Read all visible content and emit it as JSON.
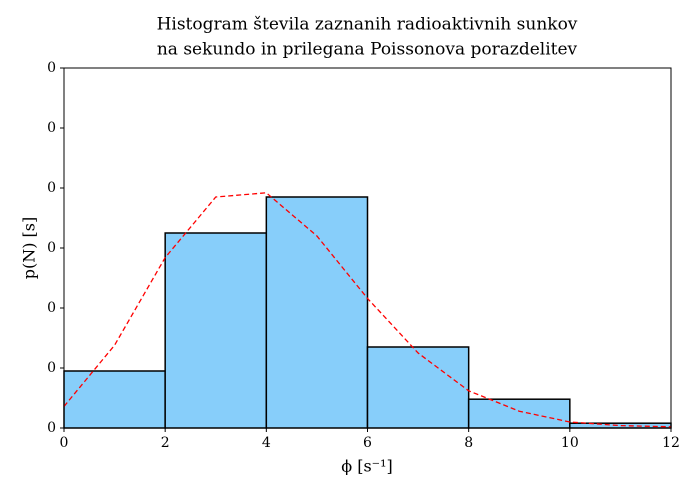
{
  "chart_data": {
    "type": "histogram",
    "title": [
      "Histogram števila zaznanih radioaktivnih sunkov",
      "na sekundo in prilegana Poissonova porazdelitev"
    ],
    "xlabel": "ϕ [s⁻¹]",
    "ylabel": "p(N) [s]",
    "bins": [
      0,
      2,
      4,
      6,
      8,
      10,
      12
    ],
    "values": [
      0.0475,
      0.1625,
      0.1925,
      0.0675,
      0.024,
      0.004
    ],
    "color": "#87cefa",
    "edgecolor": "#000000",
    "fit": {
      "x": [
        0,
        1,
        2,
        3,
        4,
        5,
        6,
        7,
        8,
        9,
        10,
        11,
        12
      ],
      "values": [
        0.018,
        0.069,
        0.142,
        0.1925,
        0.196,
        0.16,
        0.108,
        0.0625,
        0.031,
        0.014,
        0.005,
        0.002,
        0.001
      ],
      "color": "#ff0000",
      "dashed": true
    },
    "xlim": [
      0,
      12
    ],
    "xticks": [
      0,
      2,
      4,
      6,
      8,
      10,
      12
    ],
    "ylim": [
      0,
      0.3
    ],
    "yticks": [
      0,
      {
        "value": 0.05,
        "label": "0"
      },
      {
        "value": 0.1,
        "label": "0"
      },
      {
        "value": 0.15,
        "label": "0"
      },
      {
        "value": 0.2,
        "label": "0"
      },
      {
        "value": 0.25,
        "label": "0"
      },
      {
        "value": 0.3,
        "label": "0"
      }
    ]
  }
}
